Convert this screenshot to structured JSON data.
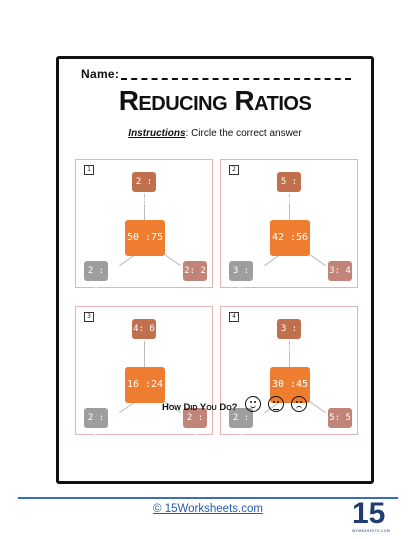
{
  "header": {
    "name_label": "Name:",
    "title": "Reducing Ratios",
    "instructions_label": "Instructions",
    "instructions_text": ": Circle the correct answer"
  },
  "problems": [
    {
      "number": "1",
      "center": "50 :75",
      "top": "2 : 3",
      "left": "2 : 1",
      "right": "2: 2"
    },
    {
      "number": "2",
      "center": "42 :56",
      "top": "5 : 4",
      "left": "3 : 5",
      "right": "3: 4"
    },
    {
      "number": "3",
      "center": "16 :24",
      "top": "4: 6",
      "left": "2 : 6",
      "right": "2 : 3"
    },
    {
      "number": "4",
      "center": "30 :45",
      "top": "3 : 2",
      "left": "2 : 3",
      "right": "5: 5"
    }
  ],
  "footer": {
    "question": "How Did You Do?",
    "site": "© 15Worksheets.com",
    "logo_number": "15",
    "logo_text": "WORKSHEETS.COM"
  },
  "colors": {
    "center_box": "#ef7d2f",
    "top_box": "#c0704c",
    "left_box": "#9e9e9e",
    "right_box": "#c08478",
    "panel_border": "#e3b4b4",
    "link": "#2a5ba8"
  }
}
